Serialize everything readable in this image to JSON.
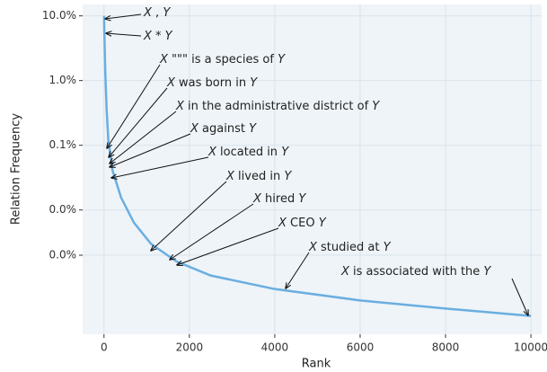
{
  "chart_data": {
    "type": "line",
    "y_label": "Relation Frequency",
    "x_label": "Rank",
    "log_y": true,
    "grid": true,
    "x": [
      1,
      10,
      30,
      60,
      100,
      200,
      400,
      700,
      1100,
      1700,
      2500,
      4000,
      6000,
      8000,
      10000
    ],
    "series": [
      {
        "name": "Relation Frequency",
        "color": "#6aaee0",
        "values": [
          10,
          5,
          1.38,
          0.38,
          0.125,
          0.041,
          0.0156,
          0.0064,
          0.003,
          0.0016,
          0.00097,
          0.0006,
          0.0004,
          0.0003,
          0.00023
        ]
      }
    ],
    "xlim": [
      -500,
      10250
    ],
    "xticks": [
      0,
      2000,
      4000,
      6000,
      8000,
      10000
    ],
    "ylim": [
      0.00012,
      15
    ],
    "yticks": [
      {
        "value": 10,
        "label": "10.0%"
      },
      {
        "value": 1,
        "label": "1.0%"
      },
      {
        "value": 0.1,
        "label": "0.1%"
      },
      {
        "value": 0.01,
        "label": "0.0%"
      },
      {
        "value": 0.002,
        "label": "0.0%"
      }
    ],
    "annotations": [
      "X , Y",
      "X * Y",
      "X \"\"\" is a species of Y",
      "X was born in Y",
      "X in the administrative district of Y",
      "X against Y",
      "X located in Y",
      "X lived in Y",
      "X hired Y",
      "X CEO Y",
      "X studied at Y",
      "X is associated with the Y"
    ]
  }
}
